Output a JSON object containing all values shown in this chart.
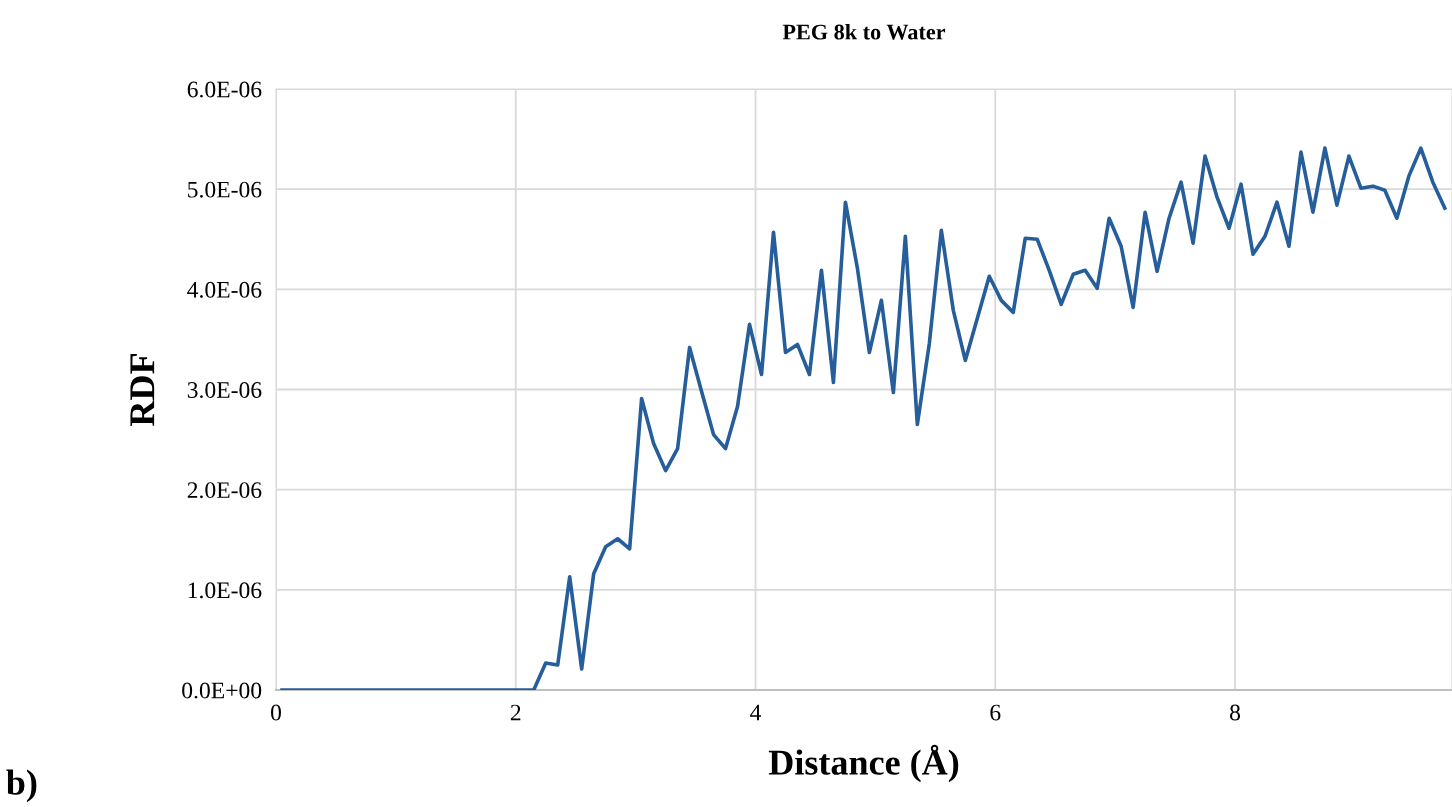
{
  "chart_data": {
    "type": "line",
    "title": "PEG 8k to Water",
    "xlabel": "Distance (Å)",
    "ylabel": "RDF",
    "annotations": [
      "b)"
    ],
    "x": [
      0.05,
      0.15,
      0.25,
      0.35,
      0.45,
      0.55,
      0.65,
      0.75,
      0.85,
      0.95,
      1.05,
      1.15,
      1.25,
      1.35,
      1.45,
      1.55,
      1.65,
      1.75,
      1.85,
      1.95,
      2.05,
      2.15,
      2.25,
      2.35,
      2.45,
      2.55,
      2.65,
      2.75,
      2.85,
      2.95,
      3.05,
      3.15,
      3.25,
      3.35,
      3.45,
      3.55,
      3.65,
      3.75,
      3.85,
      3.95,
      4.05,
      4.15,
      4.25,
      4.35,
      4.45,
      4.55,
      4.65,
      4.75,
      4.85,
      4.95,
      5.05,
      5.15,
      5.25,
      5.35,
      5.45,
      5.55,
      5.65,
      5.75,
      5.85,
      5.95,
      6.05,
      6.15,
      6.25,
      6.35,
      6.45,
      6.55,
      6.65,
      6.75,
      6.85,
      6.95,
      7.05,
      7.15,
      7.25,
      7.35,
      7.45,
      7.55,
      7.65,
      7.75,
      7.85,
      7.95,
      8.05,
      8.15,
      8.25,
      8.35,
      8.45,
      8.55,
      8.65,
      8.75,
      8.85,
      8.95,
      9.05,
      9.15,
      9.25,
      9.35,
      9.45,
      9.55,
      9.65,
      9.75
    ],
    "series": [
      {
        "color": "#255e9a",
        "values": [
          0,
          0,
          0,
          0,
          0,
          0,
          0,
          0,
          0,
          0,
          0,
          0,
          0,
          0,
          0,
          0,
          0,
          0,
          0,
          0,
          0,
          0,
          2.7e-07,
          2.5e-07,
          1.13e-06,
          2.1e-07,
          1.16e-06,
          1.43e-06,
          1.51e-06,
          1.41e-06,
          2.91e-06,
          2.46e-06,
          2.19e-06,
          2.41e-06,
          3.42e-06,
          2.98e-06,
          2.55e-06,
          2.41e-06,
          2.83e-06,
          3.65e-06,
          3.15e-06,
          4.57e-06,
          3.37e-06,
          3.45e-06,
          3.15e-06,
          4.19e-06,
          3.07e-06,
          4.87e-06,
          4.21e-06,
          3.37e-06,
          3.89e-06,
          2.97e-06,
          4.53e-06,
          2.65e-06,
          3.46e-06,
          4.59e-06,
          3.79e-06,
          3.29e-06,
          3.71e-06,
          4.13e-06,
          3.89e-06,
          3.77e-06,
          4.51e-06,
          4.5e-06,
          4.19e-06,
          3.85e-06,
          4.15e-06,
          4.19e-06,
          4.01e-06,
          4.71e-06,
          4.43e-06,
          3.82e-06,
          4.77e-06,
          4.18e-06,
          4.71e-06,
          5.07e-06,
          4.46e-06,
          5.33e-06,
          4.92e-06,
          4.61e-06,
          5.05e-06,
          4.35e-06,
          4.53e-06,
          4.87e-06,
          4.43e-06,
          5.37e-06,
          4.77e-06,
          5.41e-06,
          4.84e-06,
          5.33e-06,
          5.01e-06,
          5.03e-06,
          4.99e-06,
          4.71e-06,
          5.13e-06,
          5.41e-06,
          5.07e-06,
          4.81e-06
        ]
      }
    ],
    "xlim": [
      0,
      9.81
    ],
    "xticks": [
      0,
      2,
      4,
      6,
      8
    ],
    "ylim": [
      0,
      6e-06
    ],
    "yticks": [
      {
        "value": 0,
        "label": "0.0E+00"
      },
      {
        "value": 1e-06,
        "label": "1.0E-06"
      },
      {
        "value": 2e-06,
        "label": "2.0E-06"
      },
      {
        "value": 3e-06,
        "label": "3.0E-06"
      },
      {
        "value": 4e-06,
        "label": "4.0E-06"
      },
      {
        "value": 5e-06,
        "label": "5.0E-06"
      },
      {
        "value": 6e-06,
        "label": "6.0E-06"
      }
    ],
    "grid": true,
    "marker": "none",
    "line_style": "solid"
  }
}
